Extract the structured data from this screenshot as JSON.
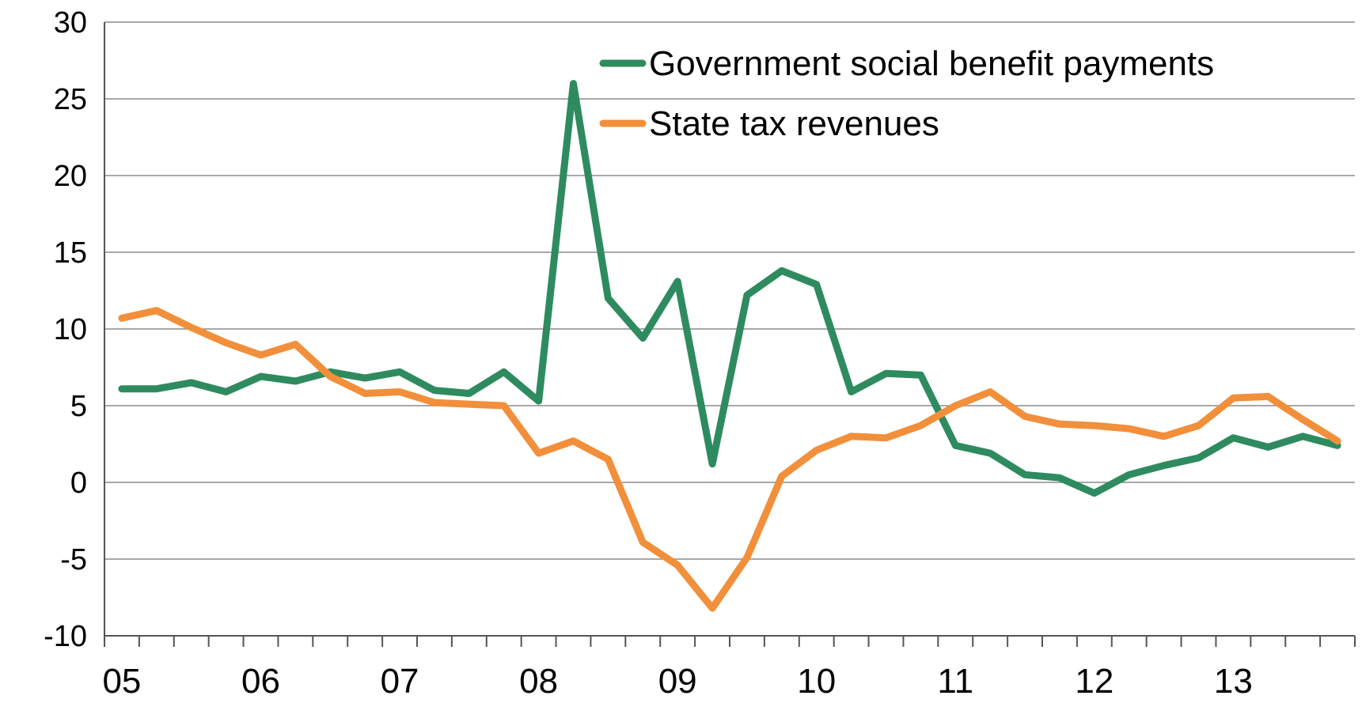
{
  "chart_data": {
    "type": "line",
    "title": "",
    "xlabel": "",
    "ylabel": "",
    "x": [
      "05Q1",
      "05Q2",
      "05Q3",
      "05Q4",
      "06Q1",
      "06Q2",
      "06Q3",
      "06Q4",
      "07Q1",
      "07Q2",
      "07Q3",
      "07Q4",
      "08Q1",
      "08Q2",
      "08Q3",
      "08Q4",
      "09Q1",
      "09Q2",
      "09Q3",
      "09Q4",
      "10Q1",
      "10Q2",
      "10Q3",
      "10Q4",
      "11Q1",
      "11Q2",
      "11Q3",
      "11Q4",
      "12Q1",
      "12Q2",
      "12Q3",
      "12Q4",
      "13Q1",
      "13Q2",
      "13Q3",
      "13Q4"
    ],
    "x_tick_labels": [
      "05",
      "06",
      "07",
      "08",
      "09",
      "10",
      "11",
      "12",
      "13"
    ],
    "ylim": [
      -10,
      30
    ],
    "y_ticks": [
      "30",
      "25",
      "20",
      "15",
      "10",
      "5",
      "0",
      "-5",
      "-10"
    ],
    "grid": true,
    "legend_position": "top-right",
    "series": [
      {
        "name": "Government social benefit payments",
        "color": "#2e8b5f",
        "values": [
          6.1,
          6.1,
          6.5,
          5.9,
          6.9,
          6.6,
          7.2,
          6.8,
          7.2,
          6.0,
          5.8,
          7.2,
          5.3,
          26.0,
          12.0,
          9.4,
          13.1,
          1.2,
          12.2,
          13.8,
          12.9,
          5.9,
          7.1,
          7.0,
          2.4,
          1.9,
          0.5,
          0.3,
          -0.7,
          0.5,
          1.1,
          1.6,
          2.9,
          2.3,
          3.0,
          2.4
        ]
      },
      {
        "name": "State tax revenues",
        "color": "#f28f3b",
        "values": [
          10.7,
          11.2,
          10.1,
          9.1,
          8.3,
          9.0,
          6.9,
          5.8,
          5.9,
          5.2,
          5.1,
          5.0,
          1.9,
          2.7,
          1.5,
          -3.9,
          -5.4,
          -8.2,
          -4.9,
          0.4,
          2.1,
          3.0,
          2.9,
          3.7,
          5.0,
          5.9,
          4.3,
          3.8,
          3.7,
          3.5,
          3.0,
          3.7,
          5.5,
          5.6,
          4.1,
          2.7
        ]
      }
    ]
  }
}
